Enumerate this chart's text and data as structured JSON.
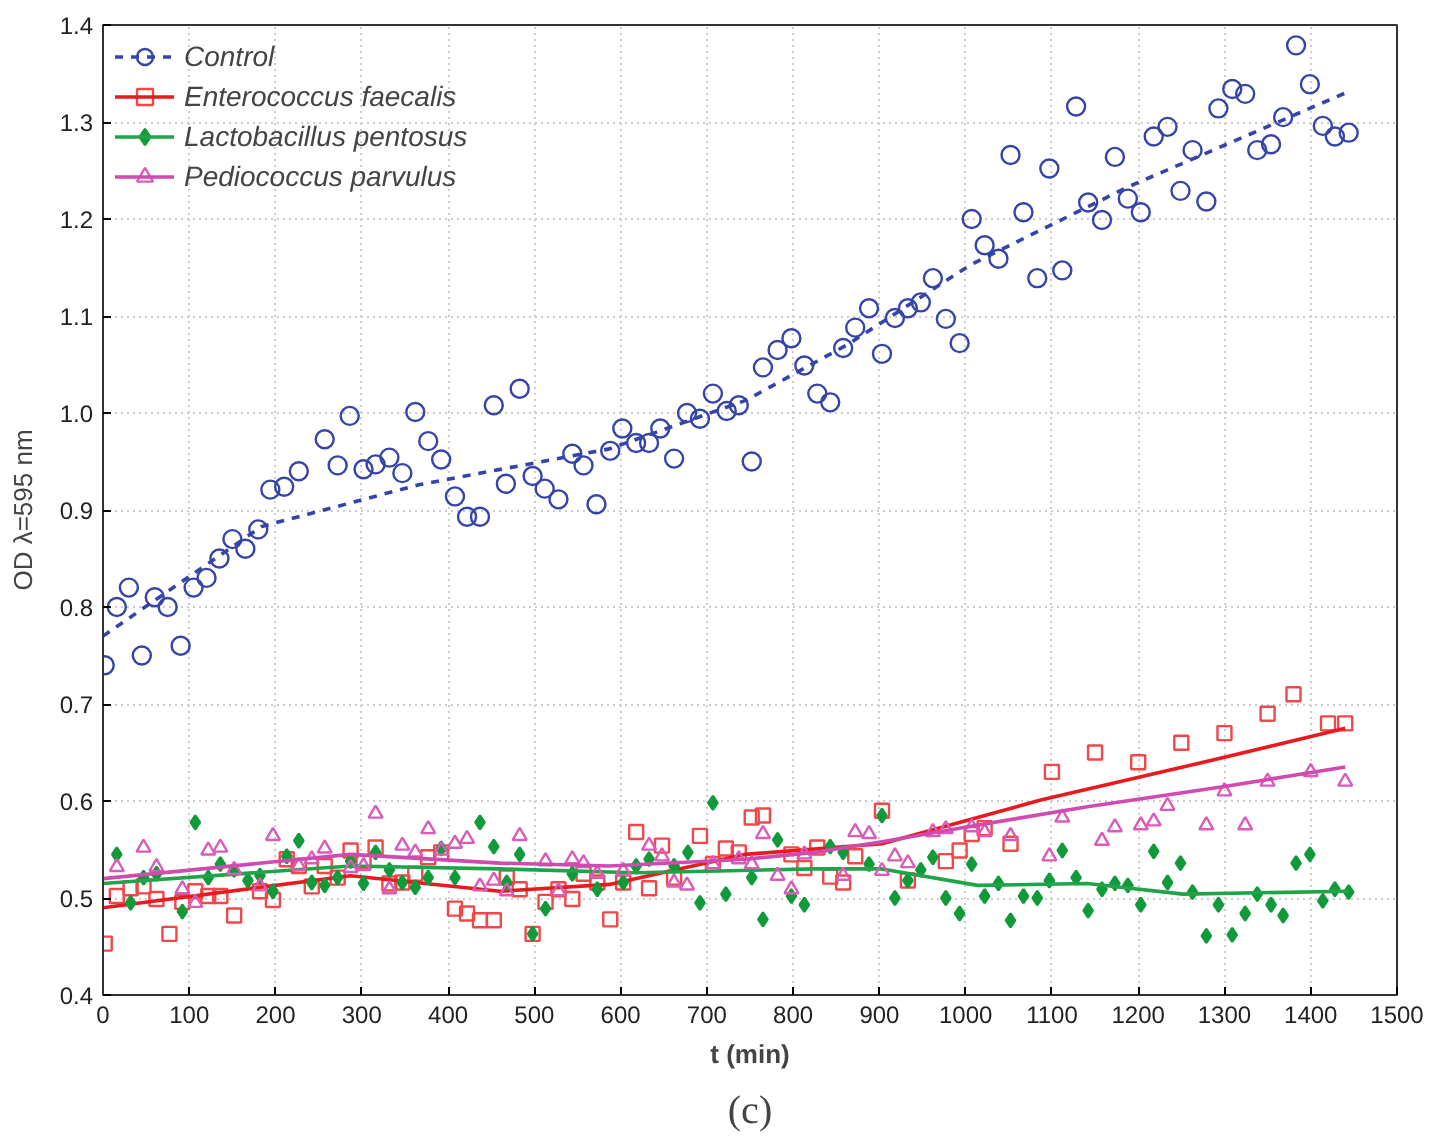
{
  "chart_data": {
    "type": "scatter",
    "xlabel": "t (min)",
    "ylabel": "OD λ=595 nm",
    "annotations": [
      "(c)"
    ],
    "xlim": [
      0,
      1500
    ],
    "ylim": [
      0.4,
      1.4
    ],
    "xticks": [
      0,
      100,
      200,
      300,
      400,
      500,
      600,
      700,
      800,
      900,
      1000,
      1100,
      1200,
      1300,
      1400,
      1500
    ],
    "yticks": [
      0.4,
      0.5,
      0.6,
      0.7,
      0.8,
      0.9,
      {
        "value": 1.0,
        "label": "1.0"
      },
      1.1,
      1.2,
      1.3,
      1.4
    ],
    "grid": true,
    "legend": "top left",
    "series": [
      {
        "name": "Control",
        "color": "#3444a8",
        "marker": "circle",
        "x": [
          2,
          16,
          30,
          45,
          60,
          75,
          90,
          105,
          120,
          135,
          150,
          165,
          180,
          194,
          210,
          227,
          257,
          272,
          286,
          302,
          316,
          332,
          347,
          362,
          377,
          392,
          408,
          422,
          437,
          453,
          467,
          483,
          498,
          512,
          528,
          544,
          557,
          572,
          588,
          602,
          618,
          633,
          646,
          662,
          677,
          692,
          707,
          723,
          737,
          752,
          765,
          782,
          798,
          813,
          828,
          843,
          858,
          872,
          888,
          903,
          918,
          933,
          948,
          962,
          977,
          993,
          1007,
          1022,
          1038,
          1052,
          1067,
          1083,
          1097,
          1112,
          1128,
          1142,
          1158,
          1173,
          1188,
          1203,
          1218,
          1234,
          1249,
          1263,
          1279,
          1293,
          1309,
          1324,
          1338,
          1354,
          1368,
          1383,
          1399,
          1414,
          1428,
          1444
        ],
        "values": [
          0.74,
          0.8,
          0.82,
          0.75,
          0.81,
          0.8,
          0.76,
          0.82,
          0.83,
          0.85,
          0.87,
          0.86,
          0.88,
          0.921,
          0.924,
          0.94,
          0.973,
          0.946,
          0.997,
          0.942,
          0.947,
          0.954,
          0.938,
          1.001,
          0.971,
          0.952,
          0.914,
          0.893,
          0.893,
          1.008,
          0.927,
          1.025,
          0.935,
          0.922,
          0.911,
          0.958,
          0.946,
          0.906,
          0.961,
          0.984,
          0.969,
          0.969,
          0.984,
          0.953,
          1.0,
          0.994,
          1.02,
          1.002,
          1.008,
          0.95,
          1.047,
          1.065,
          1.077,
          1.049,
          1.02,
          1.011,
          1.067,
          1.088,
          1.108,
          1.061,
          1.098,
          1.108,
          1.114,
          1.139,
          1.097,
          1.072,
          1.2,
          1.173,
          1.159,
          1.266,
          1.207,
          1.139,
          1.252,
          1.147,
          1.316,
          1.217,
          1.199,
          1.264,
          1.221,
          1.207,
          1.285,
          1.295,
          1.229,
          1.271,
          1.218,
          1.314,
          1.334,
          1.329,
          1.271,
          1.277,
          1.305,
          1.379,
          1.339,
          1.296,
          1.285,
          1.289
        ]
      },
      {
        "type": "line",
        "color": "#3444a8",
        "line_style": "dashed",
        "marker": "none",
        "x": [
          0,
          184,
          366,
          587,
          745,
          864,
          1006,
          1188,
          1443
        ],
        "values": [
          0.77,
          0.883,
          0.926,
          0.963,
          1.013,
          1.071,
          1.153,
          1.233,
          1.331
        ]
      },
      {
        "name": "Enterococcus faecalis",
        "color": "#f04848",
        "marker": "square",
        "x": [
          2,
          16,
          32,
          47,
          62,
          77,
          92,
          107,
          122,
          136,
          152,
          182,
          197,
          213,
          227,
          242,
          257,
          272,
          287,
          302,
          316,
          332,
          347,
          362,
          377,
          392,
          408,
          422,
          437,
          453,
          468,
          483,
          498,
          513,
          528,
          544,
          557,
          573,
          588,
          603,
          618,
          633,
          648,
          662,
          692,
          707,
          722,
          737,
          752,
          765,
          798,
          813,
          828,
          843,
          858,
          872,
          903,
          933,
          977,
          993,
          1007,
          1022,
          1052,
          1100,
          1150,
          1200,
          1250,
          1300,
          1350,
          1380,
          1420,
          1440
        ],
        "values": [
          0.453,
          0.502,
          0.51,
          0.512,
          0.499,
          0.463,
          0.496,
          0.507,
          0.502,
          0.502,
          0.482,
          0.507,
          0.498,
          0.54,
          0.533,
          0.512,
          0.533,
          0.521,
          0.549,
          0.537,
          0.552,
          0.515,
          0.516,
          0.525,
          0.542,
          0.547,
          0.489,
          0.484,
          0.477,
          0.477,
          0.521,
          0.509,
          0.463,
          0.496,
          0.509,
          0.499,
          0.525,
          0.516,
          0.478,
          0.516,
          0.568,
          0.51,
          0.554,
          0.521,
          0.564,
          0.535,
          0.551,
          0.547,
          0.583,
          0.585,
          0.545,
          0.531,
          0.552,
          0.522,
          0.516,
          0.543,
          0.59,
          0.518,
          0.538,
          0.549,
          0.566,
          0.572,
          0.556,
          0.63,
          0.65,
          0.64,
          0.66,
          0.67,
          0.69,
          0.71,
          0.68,
          0.68
        ]
      },
      {
        "type": "line",
        "color": "#e8191f",
        "marker": "none",
        "x": [
          0,
          287,
          460,
          587,
          745,
          903,
          1087,
          1300,
          1440
        ],
        "values": [
          0.49,
          0.523,
          0.507,
          0.514,
          0.545,
          0.556,
          0.601,
          0.645,
          0.675
        ]
      },
      {
        "name": "Lactobacillus pentosus",
        "color": "#119a3a",
        "marker": "diamond",
        "x": [
          16,
          32,
          47,
          62,
          92,
          107,
          122,
          136,
          152,
          168,
          182,
          197,
          213,
          227,
          242,
          257,
          272,
          287,
          302,
          316,
          332,
          347,
          362,
          377,
          392,
          408,
          437,
          453,
          468,
          483,
          498,
          513,
          544,
          573,
          603,
          618,
          633,
          662,
          678,
          692,
          707,
          722,
          752,
          765,
          782,
          798,
          813,
          843,
          858,
          888,
          903,
          918,
          933,
          948,
          962,
          977,
          993,
          1007,
          1022,
          1038,
          1052,
          1067,
          1083,
          1097,
          1112,
          1128,
          1142,
          1158,
          1173,
          1188,
          1203,
          1218,
          1234,
          1249,
          1263,
          1279,
          1293,
          1309,
          1324,
          1338,
          1354,
          1368,
          1383,
          1399,
          1414,
          1428,
          1444
        ],
        "values": [
          0.545,
          0.495,
          0.521,
          0.525,
          0.486,
          0.578,
          0.521,
          0.535,
          0.529,
          0.518,
          0.523,
          0.507,
          0.543,
          0.559,
          0.516,
          0.513,
          0.521,
          0.538,
          0.515,
          0.547,
          0.529,
          0.516,
          0.511,
          0.521,
          0.551,
          0.521,
          0.578,
          0.553,
          0.516,
          0.545,
          0.463,
          0.489,
          0.525,
          0.509,
          0.516,
          0.533,
          0.54,
          0.533,
          0.547,
          0.495,
          0.598,
          0.504,
          0.521,
          0.478,
          0.56,
          0.502,
          0.493,
          0.553,
          0.547,
          0.535,
          0.585,
          0.5,
          0.518,
          0.529,
          0.542,
          0.5,
          0.484,
          0.535,
          0.502,
          0.515,
          0.477,
          0.502,
          0.5,
          0.518,
          0.549,
          0.521,
          0.487,
          0.509,
          0.515,
          0.513,
          0.493,
          0.548,
          0.516,
          0.536,
          0.506,
          0.461,
          0.493,
          0.462,
          0.484,
          0.504,
          0.493,
          0.482,
          0.536,
          0.545,
          0.497,
          0.509,
          0.506
        ]
      },
      {
        "type": "line",
        "color": "#21a349",
        "marker": "none",
        "x": [
          0,
          287,
          460,
          618,
          824,
          903,
          1014,
          1141,
          1252,
          1444
        ],
        "values": [
          0.515,
          0.533,
          0.53,
          0.526,
          0.53,
          0.53,
          0.513,
          0.515,
          0.504,
          0.507
        ]
      },
      {
        "name": "Pediococcus parvulus",
        "color": "#d85cb8",
        "marker": "triangle",
        "x": [
          16,
          47,
          62,
          92,
          107,
          122,
          136,
          152,
          182,
          197,
          227,
          242,
          257,
          287,
          302,
          316,
          332,
          347,
          362,
          377,
          392,
          408,
          422,
          437,
          453,
          468,
          483,
          513,
          528,
          544,
          557,
          573,
          603,
          633,
          648,
          662,
          677,
          707,
          737,
          752,
          765,
          782,
          798,
          813,
          858,
          872,
          888,
          903,
          918,
          933,
          962,
          977,
          1007,
          1022,
          1052,
          1097,
          1112,
          1158,
          1173,
          1203,
          1218,
          1234,
          1279,
          1300,
          1324,
          1350,
          1400,
          1440
        ],
        "values": [
          0.532,
          0.552,
          0.532,
          0.509,
          0.495,
          0.549,
          0.552,
          0.529,
          0.512,
          0.564,
          0.533,
          0.54,
          0.551,
          0.531,
          0.533,
          0.587,
          0.509,
          0.554,
          0.547,
          0.571,
          0.549,
          0.556,
          0.561,
          0.512,
          0.518,
          0.507,
          0.564,
          0.538,
          0.507,
          0.54,
          0.536,
          0.525,
          0.528,
          0.554,
          0.543,
          0.516,
          0.513,
          0.535,
          0.54,
          0.535,
          0.566,
          0.523,
          0.509,
          0.545,
          0.523,
          0.568,
          0.566,
          0.528,
          0.543,
          0.536,
          0.568,
          0.571,
          0.573,
          0.568,
          0.564,
          0.543,
          0.583,
          0.559,
          0.573,
          0.575,
          0.579,
          0.595,
          0.575,
          0.61,
          0.575,
          0.62,
          0.63,
          0.62
        ]
      },
      {
        "type": "line",
        "color": "#d04ab0",
        "marker": "none",
        "x": [
          0,
          287,
          460,
          587,
          745,
          824,
          903,
          1006,
          1141,
          1300,
          1440
        ],
        "values": [
          0.52,
          0.545,
          0.536,
          0.533,
          0.54,
          0.547,
          0.558,
          0.574,
          0.594,
          0.615,
          0.635
        ]
      }
    ]
  }
}
